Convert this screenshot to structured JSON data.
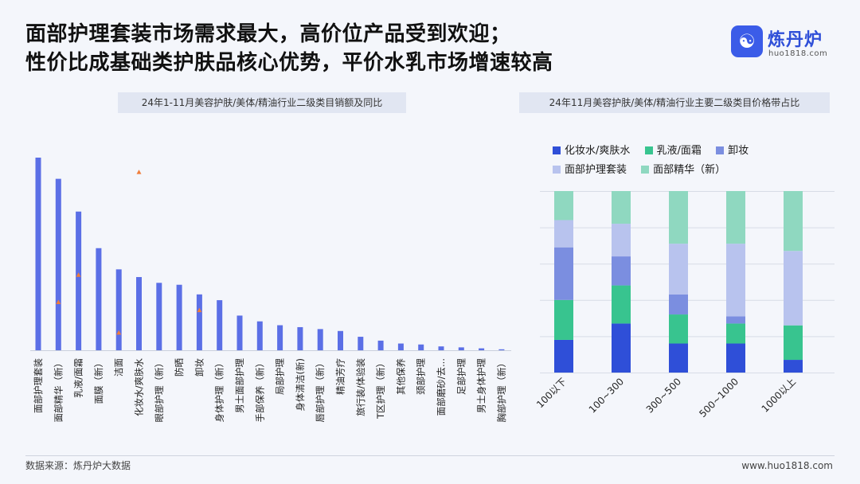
{
  "header": {
    "title_line1": "面部护理套装市场需求最大，高价位产品受到欢迎；",
    "title_line2": "性价比成基础类护肤品核心优势，平价水乳市场增速较高"
  },
  "logo": {
    "name": "炼丹炉",
    "url": "huo1818.com",
    "icon": "logo-badge-icon"
  },
  "footer": {
    "source": "数据来源：炼丹炉大数据",
    "site": "www.huo1818.com"
  },
  "chart_data": [
    {
      "type": "bar",
      "title": "24年1-11月美容护肤/美体/精油行业二级类目销额及同比",
      "categories": [
        "面部护理套装",
        "面部精华（新）",
        "乳液/面霜",
        "面膜（新）",
        "洁面",
        "化妆水/爽肤水",
        "眼部护理（新）",
        "防晒",
        "卸妆",
        "身体护理（新）",
        "男士面部护理",
        "手部保养（新）",
        "局部护理",
        "身体清洁(新)",
        "唇部护理（新）",
        "精油芳疗",
        "旅行装/体验装",
        "T区护理（新）",
        "其他保养",
        "颈部护理",
        "面部磨砂/去...",
        "足部护理",
        "男士身体护理",
        "胸部护理（新）"
      ],
      "series": [
        {
          "values": [
            100,
            89,
            72,
            53,
            42,
            38,
            35,
            34,
            29,
            26,
            18,
            15,
            13,
            12,
            11,
            10,
            7,
            5,
            3.5,
            3,
            2,
            1.5,
            1,
            0.5
          ]
        }
      ],
      "ylim": [
        0,
        100
      ],
      "growth_markers": [
        {
          "category": "面部精华（新）",
          "value": 30
        },
        {
          "category": "乳液/面霜",
          "value": 47
        },
        {
          "category": "洁面",
          "value": 11
        },
        {
          "category": "化妆水/爽肤水",
          "value": 111
        },
        {
          "category": "卸妆",
          "value": 25
        }
      ],
      "colors": {
        "bar": "#5b6fe6",
        "marker": "#f07d3a"
      },
      "grid": false,
      "legend": "none"
    },
    {
      "type": "bar",
      "stacked": true,
      "normalized": true,
      "title": "24年11月美容护肤/美体/精油行业主要二级类目价格带占比",
      "categories": [
        "100以下",
        "100~300",
        "300~500",
        "500~1000",
        "1000以上"
      ],
      "series": [
        {
          "name": "化妆水/爽肤水",
          "color": "#2f4fd8",
          "values": [
            18,
            27,
            16,
            16,
            7
          ]
        },
        {
          "name": "乳液/面霜",
          "color": "#38c48f",
          "values": [
            22,
            21,
            16,
            11,
            19
          ]
        },
        {
          "name": "卸妆",
          "color": "#7b8ee0",
          "values": [
            29,
            16,
            11,
            4,
            0
          ]
        },
        {
          "name": "面部护理套装",
          "color": "#b8c3ee",
          "values": [
            15,
            18,
            28,
            40,
            41
          ]
        },
        {
          "name": "面部精华（新）",
          "color": "#8fd8c0",
          "values": [
            16,
            18,
            29,
            29,
            33
          ]
        }
      ],
      "ylim": [
        0,
        100
      ],
      "grid": true,
      "legend": "top"
    }
  ]
}
